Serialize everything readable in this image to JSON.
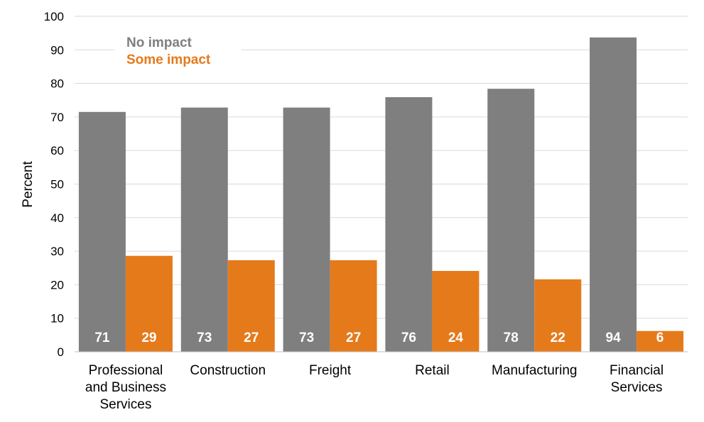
{
  "chart_data": {
    "type": "bar",
    "title": "",
    "xlabel": "",
    "ylabel": "Percent",
    "ylim": [
      0,
      100
    ],
    "yticks": [
      "0",
      "10",
      "20",
      "30",
      "40",
      "50",
      "60",
      "70",
      "80",
      "90",
      "100"
    ],
    "grid": true,
    "legend_position": "top-left",
    "categories": [
      [
        "Professional",
        "and Business",
        "Services"
      ],
      [
        "Construction"
      ],
      [
        "Freight"
      ],
      [
        "Retail"
      ],
      [
        "Manufacturing"
      ],
      [
        "Financial",
        "Services"
      ]
    ],
    "series": [
      {
        "name": "No impact",
        "color": "#7f7f7f",
        "values": [
          71.5,
          72.8,
          72.8,
          75.9,
          78.4,
          93.7
        ],
        "labels": [
          "71",
          "73",
          "73",
          "76",
          "78",
          "94"
        ]
      },
      {
        "name": "Some impact",
        "color": "#e57a1b",
        "values": [
          28.6,
          27.3,
          27.3,
          24.1,
          21.6,
          6.2
        ],
        "labels": [
          "29",
          "27",
          "27",
          "24",
          "22",
          "6"
        ]
      }
    ]
  }
}
